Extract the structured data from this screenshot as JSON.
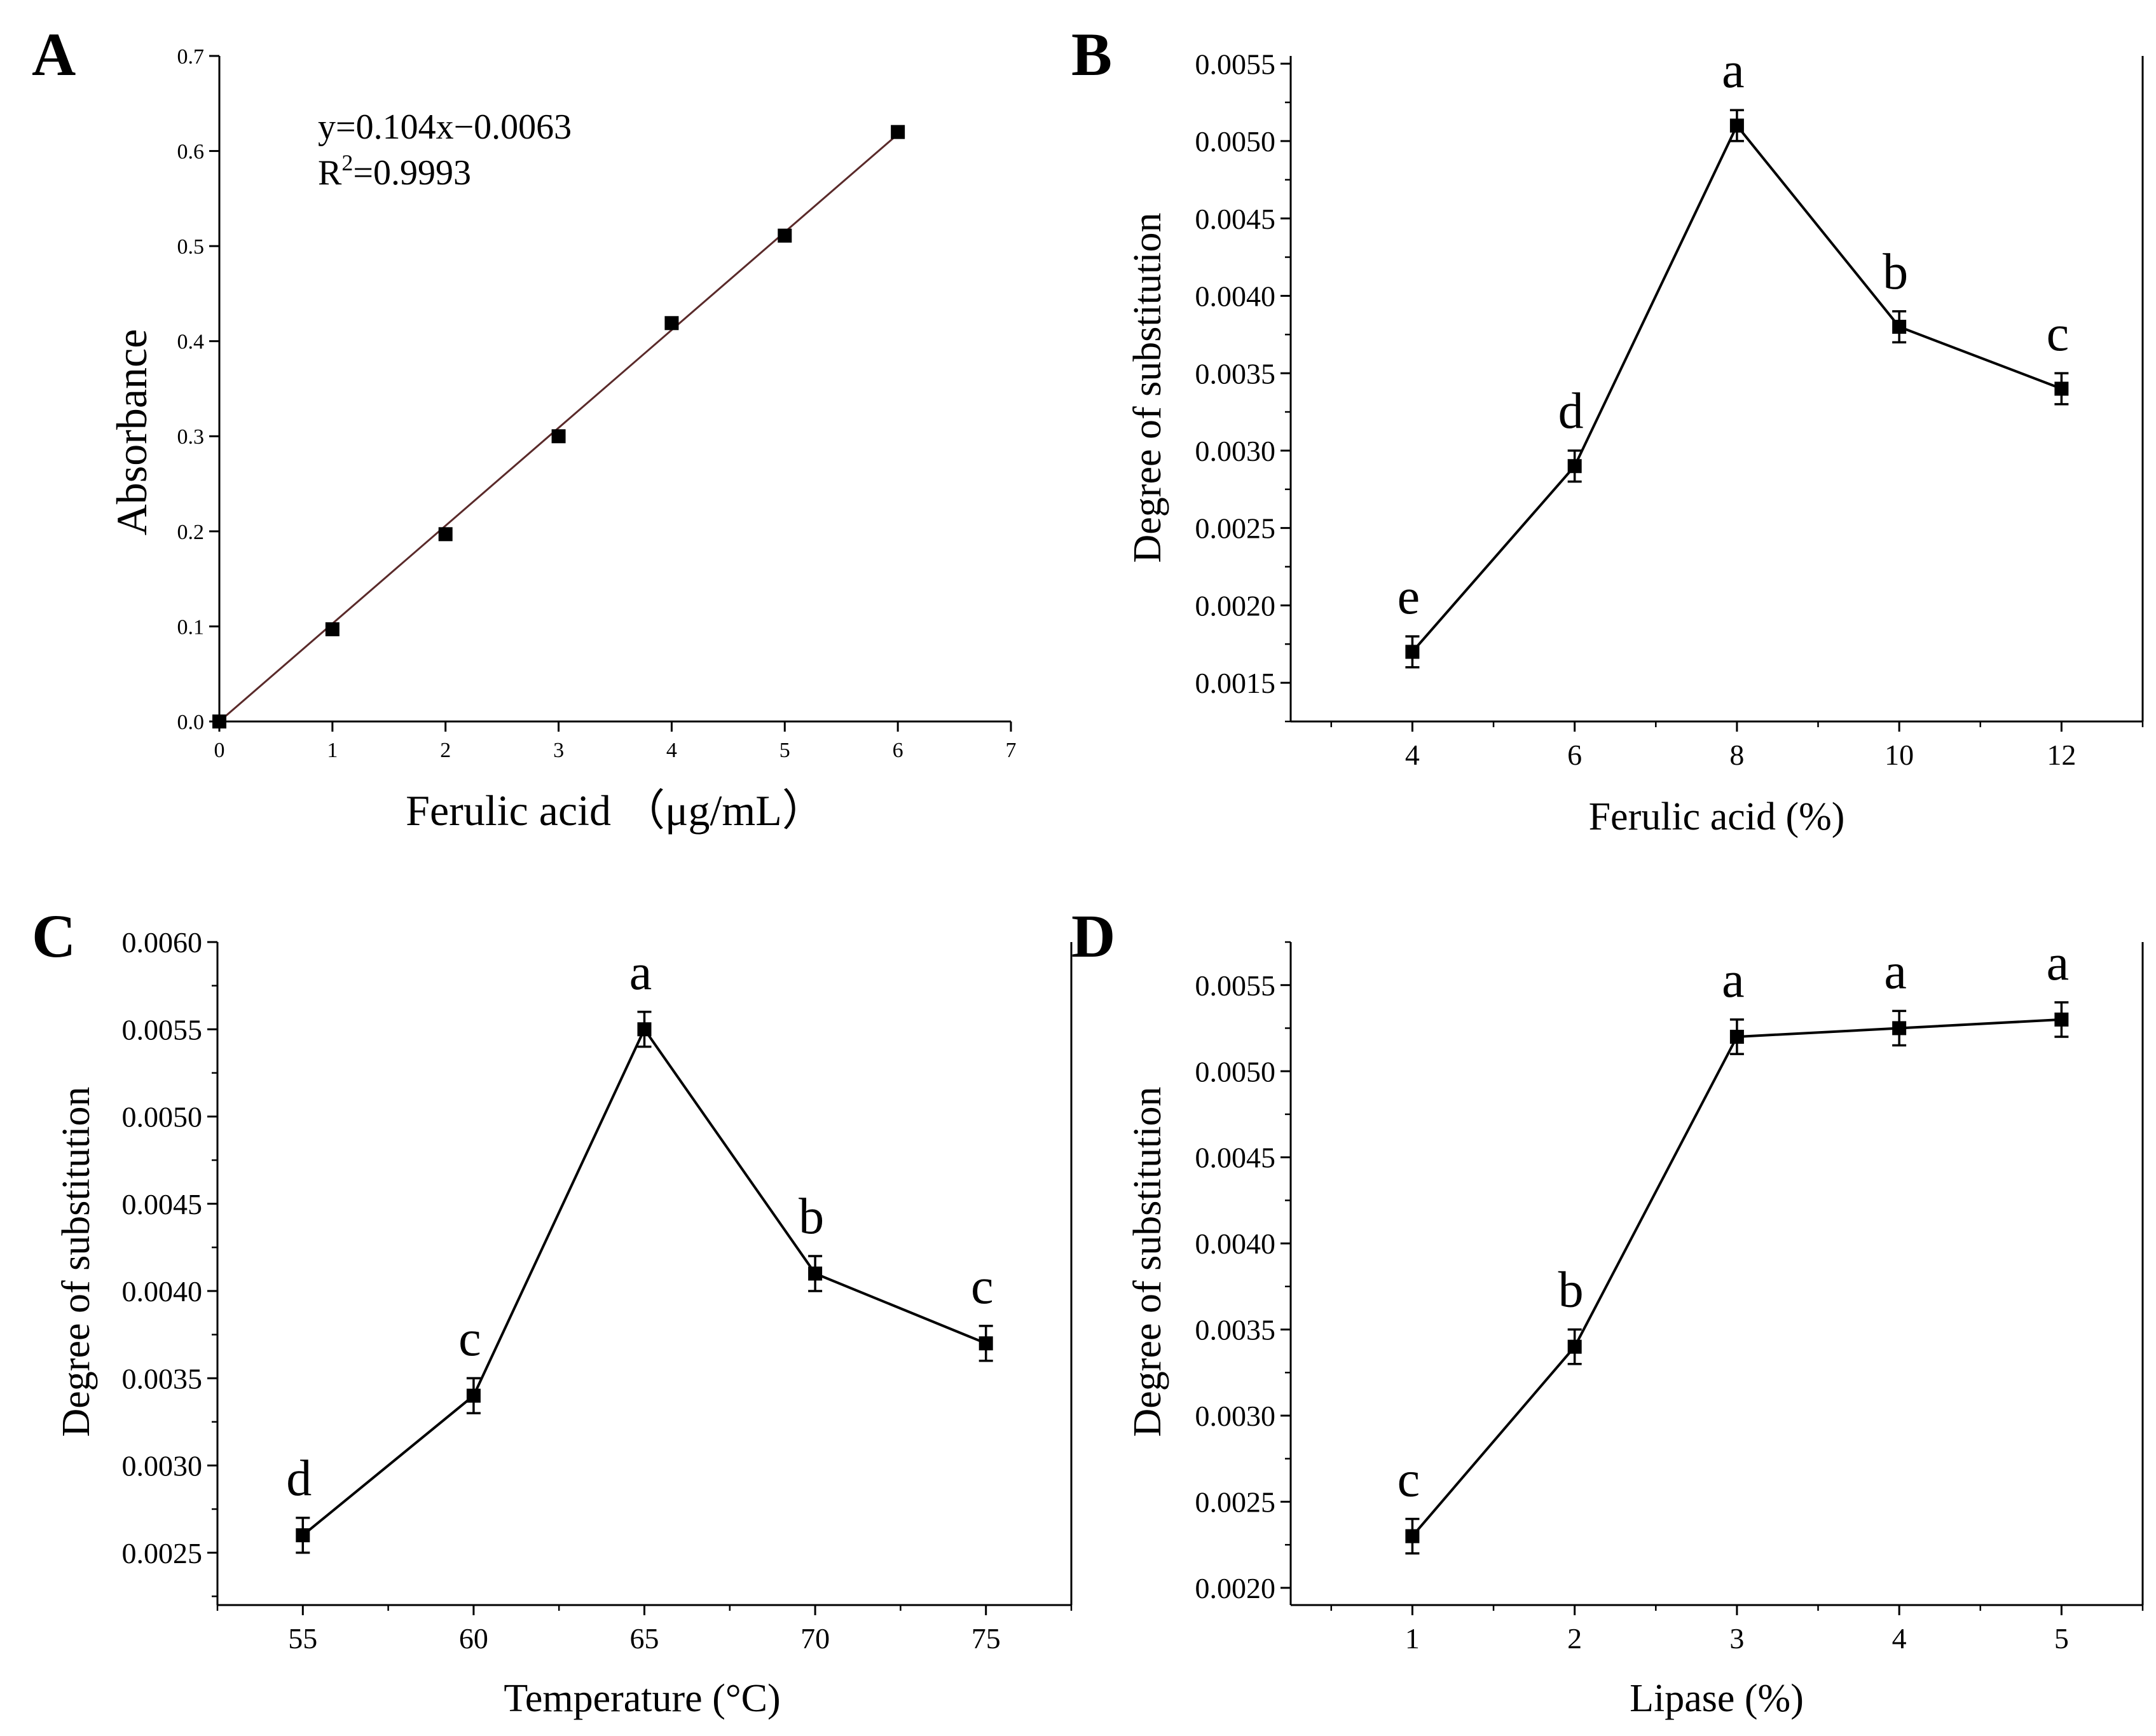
{
  "colors": {
    "axis": "#000000",
    "line_a": "#5a2a2a",
    "line": "#000000",
    "marker": "#000000"
  },
  "chart_data": [
    {
      "panel_letter": "A",
      "type": "scatter",
      "x": [
        0,
        1,
        2,
        3,
        4,
        5,
        6
      ],
      "y": [
        0.0,
        0.097,
        0.197,
        0.3,
        0.419,
        0.511,
        0.62
      ],
      "fit_line": {
        "x": [
          0,
          6
        ],
        "y": [
          -0.0063,
          0.6177
        ]
      },
      "equation": "y=0.104x−0.0063",
      "r2_prefix": "R",
      "r2_sup": "2",
      "r2_value": "=0.9993",
      "xlabel": "Ferulic acid （μg/mL）",
      "ylabel": "Absorbance",
      "xlim": [
        0,
        7
      ],
      "ylim": [
        0,
        0.7
      ],
      "xticks": [
        "0",
        "1",
        "2",
        "3",
        "4",
        "5",
        "6",
        "7"
      ],
      "yticks": [
        "0.0",
        "0.1",
        "0.2",
        "0.3",
        "0.4",
        "0.5",
        "0.6",
        "0.7"
      ],
      "grid": false
    },
    {
      "panel_letter": "B",
      "type": "line",
      "x": [
        4,
        6,
        8,
        10,
        12
      ],
      "y": [
        0.0017,
        0.0029,
        0.0051,
        0.0038,
        0.0034
      ],
      "error": [
        0.0001,
        0.0001,
        0.0001,
        0.0001,
        0.0001
      ],
      "labels": [
        "e",
        "d",
        "a",
        "b",
        "c"
      ],
      "xlabel": "Ferulic acid (%)",
      "ylabel": "Degree of substitution",
      "xlim": [
        2.5,
        13
      ],
      "ylim": [
        0.00125,
        0.00555
      ],
      "xticks": [
        "4",
        "6",
        "8",
        "10",
        "12"
      ],
      "yticks": [
        "0.0015",
        "0.0020",
        "0.0025",
        "0.0030",
        "0.0035",
        "0.0040",
        "0.0045",
        "0.0050",
        "0.0055"
      ],
      "grid": false
    },
    {
      "panel_letter": "C",
      "type": "line",
      "x": [
        55,
        60,
        65,
        70,
        75
      ],
      "y": [
        0.0026,
        0.0034,
        0.0055,
        0.0041,
        0.0037
      ],
      "error": [
        0.0001,
        0.0001,
        0.0001,
        0.0001,
        0.0001
      ],
      "labels": [
        "d",
        "c",
        "a",
        "b",
        "c"
      ],
      "xlabel": "Temperature (°C)",
      "ylabel": "Degree of substitution",
      "xlim": [
        52.5,
        77.5
      ],
      "ylim": [
        0.0022,
        0.006
      ],
      "xticks": [
        "55",
        "60",
        "65",
        "70",
        "75"
      ],
      "yticks": [
        "0.0025",
        "0.0030",
        "0.0035",
        "0.0040",
        "0.0045",
        "0.0050",
        "0.0055",
        "0.0060"
      ],
      "grid": false
    },
    {
      "panel_letter": "D",
      "type": "line",
      "x": [
        1,
        2,
        3,
        4,
        5
      ],
      "y": [
        0.0023,
        0.0034,
        0.0052,
        0.00525,
        0.0053
      ],
      "error": [
        0.0001,
        0.0001,
        0.0001,
        0.0001,
        0.0001
      ],
      "labels": [
        "c",
        "b",
        "a",
        "a",
        "a"
      ],
      "xlabel": "Lipase (%)",
      "ylabel": "Degree of substitution",
      "xlim": [
        0.25,
        5.5
      ],
      "ylim": [
        0.0019,
        0.00575
      ],
      "xticks": [
        "1",
        "2",
        "3",
        "4",
        "5"
      ],
      "yticks": [
        "0.0020",
        "0.0025",
        "0.0030",
        "0.0035",
        "0.0040",
        "0.0045",
        "0.0050",
        "0.0055"
      ],
      "grid": false
    }
  ]
}
